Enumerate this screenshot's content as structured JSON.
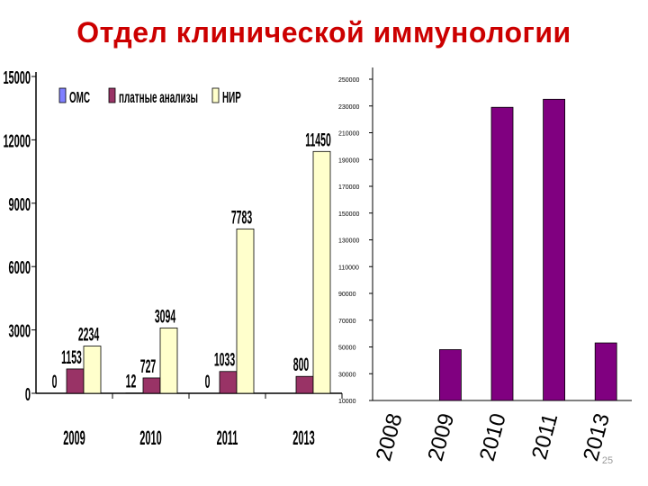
{
  "slide": {
    "title": "Отдел клинической иммунологии",
    "page_number": "25"
  },
  "colors": {
    "title": "#cc0000",
    "oms": "#8080ff",
    "paid": "#993366",
    "nir": "#ffffcc",
    "purple_bar": "#800080"
  },
  "chart_data": [
    {
      "type": "bar",
      "title": "",
      "categories": [
        "2009",
        "2010",
        "2011",
        "2013"
      ],
      "series": [
        {
          "name": "ОМС",
          "values": [
            0,
            12,
            0,
            0
          ]
        },
        {
          "name": "платные анализы",
          "values": [
            1153,
            727,
            1033,
            800
          ]
        },
        {
          "name": "НИР",
          "values": [
            2234,
            3094,
            7783,
            11450
          ]
        }
      ],
      "data_labels": [
        [
          "0",
          "12",
          "0",
          ""
        ],
        [
          "1153",
          "727",
          "1033",
          "800"
        ],
        [
          "2234",
          "3094",
          "7783",
          "11450"
        ]
      ],
      "ylim": [
        0,
        15000
      ],
      "yticks": [
        "0",
        "3000",
        "6000",
        "9000",
        "12000",
        "15000"
      ],
      "legend": "top",
      "grid": false
    },
    {
      "type": "bar",
      "title": "",
      "categories": [
        "2008",
        "2009",
        "2010",
        "2011",
        "2013"
      ],
      "values": [
        0,
        48000,
        229000,
        235000,
        53000
      ],
      "ylim": [
        10000,
        250000
      ],
      "yticks": [
        "10000",
        "30000",
        "50000",
        "70000",
        "90000",
        "110000",
        "130000",
        "150000",
        "170000",
        "190000",
        "210000",
        "230000",
        "250000"
      ],
      "legend": "none",
      "grid": false
    }
  ]
}
